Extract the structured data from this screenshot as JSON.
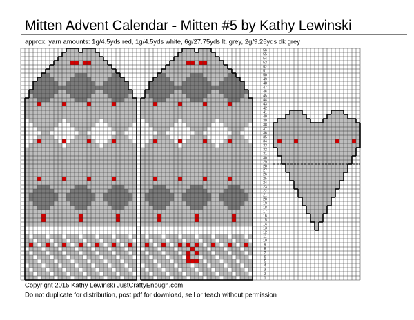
{
  "header": {
    "title": "Mitten Advent Calendar - Mitten #5 by Kathy Lewinski",
    "subtitle": "approx. yarn amounts: 1g/4.5yds red, 1g/4.5yds white, 6g/27.75yds lt. grey, 2g/9.25yds dk grey"
  },
  "chart": {
    "row_numbers": [
      1,
      2,
      3,
      4,
      5,
      6,
      7,
      8,
      9,
      10,
      11,
      12,
      13,
      14,
      15,
      16,
      17,
      18,
      19,
      20,
      21,
      22,
      23,
      24,
      25,
      26,
      27,
      28,
      29,
      30,
      31,
      32,
      33,
      34,
      35,
      36,
      37,
      38,
      39,
      40,
      41,
      42,
      43,
      44,
      45,
      46,
      47,
      48,
      49,
      50,
      51,
      52,
      53,
      54,
      55,
      56
    ]
  },
  "footer": {
    "copyright": "Copyright 2015 Kathy Lewinski JustCraftyEnough.com",
    "notice": "Do not duplicate for distribution, post pdf for download, sell or teach without permission"
  }
}
